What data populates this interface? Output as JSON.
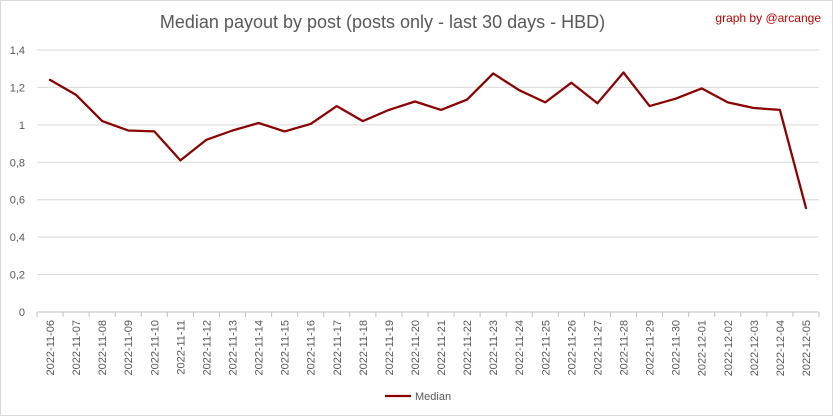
{
  "chart_data": {
    "type": "line",
    "title": "Median payout by post (posts only - last 30 days - HBD)",
    "credit": "graph by @arcange",
    "xlabel": "",
    "ylabel": "",
    "ylim": [
      0,
      1.4
    ],
    "yticks": [
      "0",
      "0,2",
      "0,4",
      "0,6",
      "0,8",
      "1",
      "1,2",
      "1,4"
    ],
    "ytick_values": [
      0,
      0.2,
      0.4,
      0.6,
      0.8,
      1.0,
      1.2,
      1.4
    ],
    "grid": true,
    "legend_position": "bottom",
    "categories": [
      "2022-11-06",
      "2022-11-07",
      "2022-11-08",
      "2022-11-09",
      "2022-11-10",
      "2022-11-11",
      "2022-11-12",
      "2022-11-13",
      "2022-11-14",
      "2022-11-15",
      "2022-11-16",
      "2022-11-17",
      "2022-11-18",
      "2022-11-19",
      "2022-11-20",
      "2022-11-21",
      "2022-11-22",
      "2022-11-23",
      "2022-11-24",
      "2022-11-25",
      "2022-11-26",
      "2022-11-27",
      "2022-11-28",
      "2022-11-29",
      "2022-11-30",
      "2022-12-01",
      "2022-12-02",
      "2022-12-03",
      "2022-12-04",
      "2022-12-05"
    ],
    "series": [
      {
        "name": "Median",
        "color": "#8b0000",
        "values": [
          1.24,
          1.16,
          1.02,
          0.97,
          0.965,
          0.81,
          0.92,
          0.97,
          1.01,
          0.965,
          1.005,
          1.1,
          1.02,
          1.08,
          1.125,
          1.08,
          1.135,
          1.275,
          1.185,
          1.12,
          1.225,
          1.115,
          1.28,
          1.1,
          1.14,
          1.195,
          1.12,
          1.09,
          1.08,
          0.555
        ]
      }
    ]
  }
}
